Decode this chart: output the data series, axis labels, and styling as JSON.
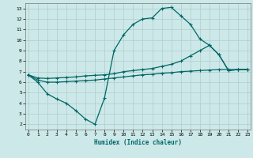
{
  "xlabel": "Humidex (Indice chaleur)",
  "bg_color": "#cce8e8",
  "grid_color": "#b8d8d8",
  "line_color": "#006666",
  "xlim": [
    -0.3,
    23.3
  ],
  "ylim": [
    1.5,
    13.5
  ],
  "xticks": [
    0,
    1,
    2,
    3,
    4,
    5,
    6,
    7,
    8,
    9,
    10,
    11,
    12,
    13,
    14,
    15,
    16,
    17,
    18,
    19,
    20,
    21,
    22,
    23
  ],
  "yticks": [
    2,
    3,
    4,
    5,
    6,
    7,
    8,
    9,
    10,
    11,
    12,
    13
  ],
  "line1_x": [
    0,
    1,
    2,
    3,
    4,
    5,
    6,
    7,
    8,
    9,
    10,
    11,
    12,
    13,
    14,
    15,
    16,
    17,
    18,
    19,
    20,
    21,
    22,
    23
  ],
  "line1_y": [
    6.7,
    6.0,
    4.9,
    4.4,
    4.0,
    3.3,
    2.5,
    2.0,
    4.5,
    9.0,
    10.5,
    11.5,
    12.0,
    12.1,
    13.0,
    13.1,
    12.3,
    11.5,
    10.1,
    9.5,
    8.6,
    7.1,
    7.2,
    7.2
  ],
  "line2_x": [
    0,
    1,
    2,
    3,
    4,
    5,
    6,
    7,
    8,
    9,
    10,
    11,
    12,
    13,
    14,
    15,
    16,
    17,
    18,
    19,
    20,
    21,
    22,
    23
  ],
  "line2_y": [
    6.7,
    6.4,
    6.35,
    6.4,
    6.45,
    6.5,
    6.6,
    6.65,
    6.7,
    6.8,
    7.0,
    7.1,
    7.2,
    7.3,
    7.5,
    7.7,
    8.0,
    8.5,
    9.0,
    9.5,
    8.6,
    7.1,
    7.2,
    7.2
  ],
  "line3_x": [
    0,
    1,
    2,
    3,
    4,
    5,
    6,
    7,
    8,
    9,
    10,
    11,
    12,
    13,
    14,
    15,
    16,
    17,
    18,
    19,
    20,
    21,
    22,
    23
  ],
  "line3_y": [
    6.7,
    6.2,
    6.0,
    6.0,
    6.05,
    6.1,
    6.15,
    6.2,
    6.3,
    6.4,
    6.5,
    6.6,
    6.7,
    6.75,
    6.85,
    6.9,
    7.0,
    7.05,
    7.1,
    7.15,
    7.2,
    7.2,
    7.2,
    7.2
  ]
}
